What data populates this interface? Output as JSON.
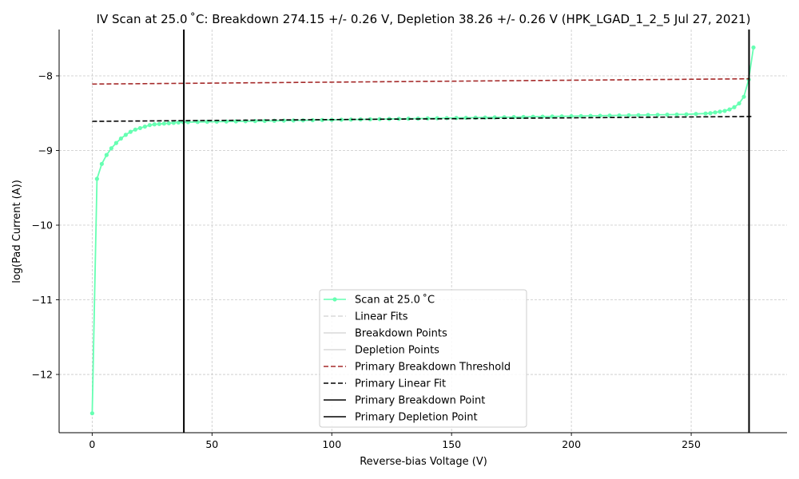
{
  "chart_data": {
    "type": "line",
    "title": "IV Scan at 25.0$^\\circ$C: Breakdown 274.15 +/- 0.26 V, Depletion 38.26 +/- 0.26 V (HPK_LGAD_1_2_5 Jul 27, 2021)",
    "title_display": "IV Scan at 25.0 ˚C: Breakdown 274.15 +/- 0.26 V, Depletion 38.26 +/- 0.26 V (HPK_LGAD_1_2_5 Jul 27, 2021)",
    "xlabel": "Reverse-bias Voltage (V)",
    "ylabel": "log(Pad Current (A))",
    "xlim": [
      -13.8,
      290
    ],
    "ylim": [
      -12.78,
      -7.38
    ],
    "xticks": [
      0,
      50,
      100,
      150,
      200,
      250
    ],
    "yticks": [
      -12,
      -11,
      -10,
      -9,
      -8
    ],
    "ytick_labels": [
      "−12",
      "−11",
      "−10",
      "−9",
      "−8"
    ],
    "grid": true,
    "legend_position": "lower-center",
    "series": [
      {
        "name": "Scan at 25.0 ˚C",
        "color": "#66ffb2",
        "style": "line-with-markers",
        "x": [
          0,
          2,
          4,
          6,
          8,
          10,
          12,
          14,
          16,
          18,
          20,
          22,
          24,
          26,
          28,
          30,
          32,
          34,
          36,
          38,
          40,
          44,
          48,
          52,
          56,
          60,
          64,
          68,
          72,
          76,
          80,
          84,
          88,
          92,
          96,
          100,
          104,
          108,
          112,
          116,
          120,
          124,
          128,
          132,
          136,
          140,
          144,
          148,
          152,
          156,
          160,
          164,
          168,
          172,
          176,
          180,
          184,
          188,
          192,
          196,
          200,
          204,
          208,
          212,
          216,
          220,
          224,
          228,
          232,
          236,
          240,
          244,
          248,
          252,
          256,
          258,
          260,
          262,
          264,
          266,
          268,
          270,
          272,
          274,
          276
        ],
        "y": [
          -12.52,
          -9.38,
          -9.18,
          -9.06,
          -8.97,
          -8.9,
          -8.84,
          -8.79,
          -8.75,
          -8.72,
          -8.7,
          -8.68,
          -8.66,
          -8.65,
          -8.645,
          -8.64,
          -8.635,
          -8.63,
          -8.625,
          -8.62,
          -8.62,
          -8.618,
          -8.616,
          -8.614,
          -8.612,
          -8.61,
          -8.608,
          -8.606,
          -8.604,
          -8.602,
          -8.6,
          -8.598,
          -8.596,
          -8.594,
          -8.592,
          -8.59,
          -8.588,
          -8.586,
          -8.584,
          -8.582,
          -8.58,
          -8.578,
          -8.576,
          -8.574,
          -8.572,
          -8.57,
          -8.568,
          -8.566,
          -8.564,
          -8.562,
          -8.56,
          -8.558,
          -8.556,
          -8.554,
          -8.552,
          -8.55,
          -8.548,
          -8.546,
          -8.544,
          -8.542,
          -8.54,
          -8.538,
          -8.536,
          -8.534,
          -8.532,
          -8.53,
          -8.528,
          -8.526,
          -8.524,
          -8.522,
          -8.52,
          -8.518,
          -8.516,
          -8.51,
          -8.505,
          -8.5,
          -8.49,
          -8.48,
          -8.47,
          -8.45,
          -8.42,
          -8.37,
          -8.28,
          -8.05,
          -7.62
        ]
      },
      {
        "name": "Linear Fits",
        "color": "#d9d9d9",
        "style": "dashed",
        "legend_only": true
      },
      {
        "name": "Breakdown Points",
        "color": "#d9d9d9",
        "style": "solid",
        "legend_only": true
      },
      {
        "name": "Depletion Points",
        "color": "#d9d9d9",
        "style": "solid",
        "legend_only": true
      },
      {
        "name": "Primary Breakdown Threshold",
        "color": "#a52a2a",
        "style": "dashed",
        "x": [
          0,
          274.15
        ],
        "y": [
          -8.11,
          -8.04
        ]
      },
      {
        "name": "Primary Linear Fit",
        "color": "#000000",
        "style": "dashed",
        "x": [
          0,
          276
        ],
        "y": [
          -8.61,
          -8.545
        ]
      },
      {
        "name": "Primary Breakdown Point",
        "color": "#000000",
        "style": "vline",
        "x_value": 274.15
      },
      {
        "name": "Primary Depletion Point",
        "color": "#000000",
        "style": "vline",
        "x_value": 38.26
      }
    ]
  }
}
